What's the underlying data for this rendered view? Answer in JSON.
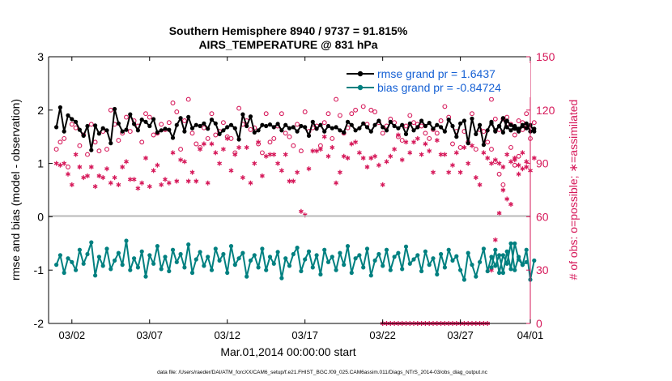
{
  "chart_data": {
    "type": "line",
    "title_line1": "Southern Hemisphere 8940 / 9737 = 91.815%",
    "title_line2": "AIRS_TEMPERATURE @ 831 hPa",
    "xlabel": "Mar.01,2014 00:00:00 start",
    "ylabel_left": "rmse and bias (model - observation)",
    "ylabel_right": "# of obs: o=possible;  ∗=assimilated",
    "footer": "data file: /Users/raeder/DAI/ATM_forcXX/CAM6_setup/f.e21.FHIST_BGC.f09_025.CAM6assim.011/Diags_NTrS_2014-03/obs_diag_output.nc",
    "xlim": [
      0.5,
      31.5
    ],
    "ylim_left": [
      -2,
      3
    ],
    "ylim_right": [
      0,
      150
    ],
    "x_ticks": [
      {
        "value": 2,
        "label": "03/02"
      },
      {
        "value": 7,
        "label": "03/07"
      },
      {
        "value": 12,
        "label": "03/12"
      },
      {
        "value": 17,
        "label": "03/17"
      },
      {
        "value": 22,
        "label": "03/22"
      },
      {
        "value": 27,
        "label": "03/27"
      },
      {
        "value": 32,
        "label": "04/01"
      }
    ],
    "y_ticks_left": [
      "-2",
      "-1",
      "0",
      "1",
      "2",
      "3"
    ],
    "y_ticks_right": [
      "0",
      "30",
      "60",
      "90",
      "120",
      "150"
    ],
    "legend": {
      "position": "top-right",
      "entries": [
        {
          "label": "rmse grand pr = 1.6437",
          "color": "#000000"
        },
        {
          "label": "bias grand pr = -0.84724",
          "color": "#008080"
        }
      ]
    },
    "colors": {
      "rmse": "#000000",
      "bias": "#008080",
      "obs": "#d6195a",
      "axis_right": "#d6195a",
      "legend_text": "#1560d4",
      "zero_line": "#b8b8b8"
    },
    "series": [
      {
        "name": "rmse",
        "segments": [
          {
            "x0": 1.0,
            "dx": 0.25,
            "values": [
              1.68,
              2.05,
              1.6,
              1.9,
              1.83,
              1.78,
              1.63,
              1.52,
              1.7,
              1.25,
              1.71,
              1.56,
              1.66,
              1.62,
              1.38,
              2.02,
              1.75,
              1.6,
              1.63,
              1.92,
              1.74,
              1.62,
              1.82,
              1.78,
              1.7,
              1.83,
              1.58,
              1.62,
              1.65,
              1.63,
              1.48,
              1.72,
              1.85,
              1.6,
              1.87,
              1.66,
              1.72,
              1.7,
              1.75,
              1.65,
              1.82,
              1.75,
              1.55,
              1.62,
              1.68,
              1.72,
              1.66,
              1.45,
              1.92,
              1.7,
              1.88,
              1.58,
              1.62,
              1.72,
              1.7,
              1.73,
              1.68,
              1.74,
              1.62,
              1.72,
              1.66,
              1.68,
              1.6,
              1.7,
              1.68,
              1.52,
              1.78,
              1.65,
              1.72,
              1.6,
              1.7,
              1.66,
              1.68,
              1.62,
              1.58,
              1.78,
              1.72,
              1.62,
              1.66,
              1.75,
              1.68,
              1.6,
              1.72,
              1.8,
              1.68,
              1.62,
              1.78,
              1.7,
              1.66,
              1.72,
              1.55,
              1.75,
              1.62,
              1.68,
              1.8,
              1.7,
              1.76,
              1.65,
              1.72,
              1.68,
              1.6,
              1.82,
              1.7,
              1.5,
              1.75,
              1.8,
              1.38,
              1.84,
              1.55,
              1.72,
              1.35,
              1.62,
              1.78,
              1.6,
              1.7,
              1.85,
              1.68,
              1.62,
              1.7,
              1.65,
              1.72,
              1.75,
              1.6,
              1.65
            ]
          },
          {
            "x0": 29.0,
            "dx": 0.25,
            "values": [
              1.75,
              1.62,
              1.7,
              1.58,
              1.8,
              1.72,
              1.65,
              1.6,
              1.7,
              1.66,
              1.72,
              1.6
            ]
          }
        ]
      },
      {
        "name": "bias",
        "segments": [
          {
            "x0": 1.0,
            "dx": 0.25,
            "values": [
              -0.9,
              -0.72,
              -1.05,
              -0.78,
              -0.85,
              -1.0,
              -0.62,
              -0.88,
              -0.7,
              -0.48,
              -1.1,
              -0.75,
              -0.92,
              -0.6,
              -0.98,
              -0.82,
              -0.68,
              -0.9,
              -0.45,
              -1.0,
              -0.78,
              -0.95,
              -0.65,
              -1.12,
              -0.72,
              -0.88,
              -0.55,
              -0.98,
              -0.75,
              -1.02,
              -0.62,
              -0.85,
              -0.7,
              -0.95,
              -0.52,
              -1.05,
              -0.8,
              -0.66,
              -0.92,
              -0.75,
              -1.0,
              -0.6,
              -0.82,
              -0.7,
              -1.05,
              -0.55,
              -0.9,
              -0.78,
              -0.68,
              -1.12,
              -0.82,
              -0.72,
              -0.95,
              -0.6,
              -1.0,
              -0.75,
              -0.88,
              -0.66,
              -1.15,
              -0.78,
              -0.92,
              -0.7,
              -0.58,
              -1.02,
              -0.8,
              -0.65,
              -0.95,
              -0.72,
              -1.08,
              -0.62,
              -0.85,
              -0.75,
              -1.0,
              -0.68,
              -0.9,
              -0.55,
              -1.05,
              -0.78,
              -0.72,
              -0.95,
              -0.6,
              -1.1,
              -0.82,
              -0.7,
              -0.92,
              -0.62,
              -1.0,
              -0.75,
              -0.68,
              -0.98,
              -0.56,
              -0.88,
              -0.8,
              -0.72,
              -1.02,
              -0.65,
              -0.9,
              -0.78,
              -1.08,
              -0.7,
              -0.95,
              -0.62,
              -0.82,
              -0.74,
              -1.0,
              -1.18,
              -0.68,
              -0.9,
              -1.12,
              -0.85,
              -0.6,
              -1.02,
              -0.75,
              -0.92,
              -0.72,
              -1.05,
              -0.65,
              -0.98,
              -0.5,
              -0.8,
              -0.9,
              -0.85
            ]
          },
          {
            "x0": 29.0,
            "dx": 0.25,
            "values": [
              -0.95,
              -0.62,
              -1.05,
              -0.72,
              -0.88,
              -0.5,
              -1.0,
              -0.75,
              -0.9,
              -0.62,
              -1.18,
              -0.82
            ]
          }
        ]
      },
      {
        "name": "obs_possible",
        "axis": "right",
        "segments": [
          {
            "x0": 1.0,
            "dx": 0.25,
            "values": [
              98,
              102,
              104,
              88,
              112,
              110,
              100,
              106,
              95,
              112,
              102,
              97,
              108,
              98,
              120,
              112,
              103,
              107,
              116,
              108,
              114,
              111,
              102,
              118,
              116,
              106,
              107,
              112,
              109,
              113,
              124,
              119,
              98,
              114,
              126,
              107,
              101,
              99,
              110,
              104,
              118,
              106,
              108,
              113,
              105,
              104,
              96,
              121,
              112,
              114,
              109,
              110,
              101,
              96,
              118,
              102,
              104,
              111,
              118,
              107,
              105,
              100,
              112,
              97,
              119,
              108,
              110,
              111,
              100,
              113,
              118,
              104,
              126,
              117,
              107,
              110,
              118,
              120,
              132,
              122,
              112,
              120,
              119,
              113,
              107,
              111,
              115,
              113,
              105,
              103,
              111,
              117,
              113,
              112,
              111,
              107,
              104,
              109,
              107,
              114,
              122,
              116,
              101,
              108,
              99,
              108,
              102,
              118,
              98,
              109,
              108,
              102,
              126,
              115,
              109,
              115,
              112,
              99,
              89,
              94,
              113,
              118
            ]
          },
          {
            "x0": 29.0,
            "dx": 0.25,
            "values": [
              98,
              91,
              84,
              78,
              116,
              112,
              106,
              114,
              109,
              110,
              104,
              113
            ]
          }
        ]
      },
      {
        "name": "obs_assimilated",
        "axis": "right",
        "segments": [
          {
            "x0": 1.0,
            "dx": 0.25,
            "values": [
              90,
              89,
              90,
              84,
              78,
              95,
              88,
              82,
              83,
              88,
              77,
              83,
              82,
              87,
              79,
              82,
              78,
              88,
              91,
              81,
              81,
              76,
              79,
              93,
              77,
              86,
              89,
              78,
              81,
              79,
              96,
              80,
              92,
              91,
              80,
              85,
              80,
              98,
              101,
              79,
              101,
              96,
              90,
              98,
              104,
              86,
              95,
              99,
              82,
              99,
              79,
              90,
              102,
              83,
              94,
              95,
              95,
              90,
              86,
              95,
              80,
              80,
              85,
              63,
              61,
              87,
              97,
              97,
              98,
              105,
              94,
              99,
              79,
              85,
              94,
              93,
              101,
              102,
              96,
              93,
              88,
              93,
              94,
              89,
              78,
              91,
              94,
              98,
              106,
              92,
              102,
              96,
              102,
              104,
              95,
              101,
              97,
              85,
              103,
              95,
              95,
              85,
              89,
              96,
              85,
              99,
              90,
              100,
              82,
              78,
              96,
              93,
              90,
              92,
              90,
              88,
              95,
              91,
              93,
              89,
              87,
              91
            ]
          },
          {
            "x0": 22.0,
            "dx": 0.25,
            "values": [
              0,
              0,
              0,
              0,
              0,
              0,
              0,
              0,
              0,
              0,
              0,
              0,
              0,
              0,
              0,
              0,
              0,
              0,
              0,
              0,
              0,
              0,
              0,
              0,
              0,
              0,
              0,
              0
            ]
          },
          {
            "x0": 29.0,
            "dx": 0.25,
            "values": [
              30,
              47,
              62,
              75,
              70,
              67,
              92,
              84,
              96,
              88,
              86,
              93
            ]
          }
        ]
      }
    ]
  }
}
